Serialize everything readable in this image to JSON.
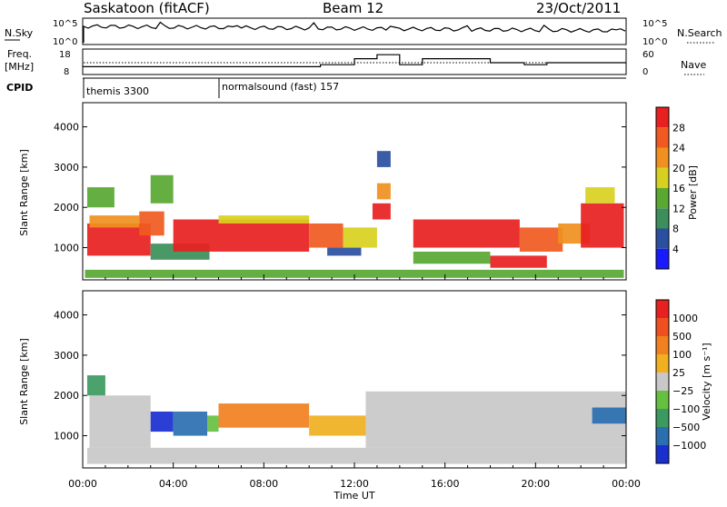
{
  "header": {
    "title": "Saskatoon (fitACF)",
    "beam": "Beam 12",
    "date": "23/Oct/2011"
  },
  "top_panels": {
    "nsky_label": "N.Sky",
    "nsky_ticks": [
      "10^5",
      "10^0"
    ],
    "nsearch_label": "N.Search",
    "nsearch_ticks": [
      "10^5",
      "10^0"
    ],
    "freq_label_line1": "Freq.",
    "freq_label_line2": "[MHz]",
    "freq_ticks": [
      "18",
      "8"
    ],
    "nave_label": "Nave",
    "nave_ticks": [
      "60",
      "0"
    ],
    "cpid_label": "CPID",
    "cpid_segments": [
      {
        "text": "themis 3300",
        "start_hour": 0.0
      },
      {
        "text": "normalsound (fast) 157",
        "start_hour": 6.0
      }
    ]
  },
  "axes": {
    "ylabel": "Slant Range [km]",
    "yticks": [
      "1000",
      "2000",
      "3000",
      "4000"
    ],
    "xticks": [
      "00:00",
      "04:00",
      "08:00",
      "12:00",
      "16:00",
      "20:00",
      "00:00"
    ],
    "xlabel": "Time UT"
  },
  "power_scale": {
    "label": "Power [dB]",
    "ticks": [
      "4",
      "8",
      "12",
      "16",
      "20",
      "24",
      "28"
    ],
    "colors": [
      "#1a1aff",
      "#2a4fa0",
      "#3c8f5a",
      "#58a832",
      "#d8d020",
      "#f09020",
      "#f05a20",
      "#e82020"
    ]
  },
  "velocity_scale": {
    "label": "Velocity [m s⁻¹]",
    "ticks": [
      "1000",
      "500",
      "100",
      "25",
      "−25",
      "−100",
      "−500",
      "−1000"
    ],
    "colors": [
      "#1a2fd0",
      "#2a6fb0",
      "#3c9a60",
      "#66c040",
      "#c8c8c8",
      "#f0b020",
      "#f08020",
      "#f05020",
      "#e82020"
    ]
  },
  "chart_data": {
    "type": "heatmap",
    "x_unit": "hours UT",
    "xlim": [
      0,
      24
    ],
    "ylim": [
      200,
      4600
    ],
    "power": {
      "scale_ticks_dB": [
        4,
        8,
        12,
        16,
        20,
        24,
        28
      ],
      "cells": [
        {
          "t0": 0.2,
          "t1": 3.0,
          "r0": 800,
          "r1": 1600,
          "c": 7
        },
        {
          "t0": 0.3,
          "t1": 2.5,
          "r0": 1500,
          "r1": 1800,
          "c": 5
        },
        {
          "t0": 0.2,
          "t1": 1.4,
          "r0": 2000,
          "r1": 2500,
          "c": 3
        },
        {
          "t0": 2.5,
          "t1": 3.6,
          "r0": 1300,
          "r1": 1900,
          "c": 6
        },
        {
          "t0": 3.0,
          "t1": 5.6,
          "r0": 700,
          "r1": 1100,
          "c": 2
        },
        {
          "t0": 3.0,
          "t1": 4.0,
          "r0": 2100,
          "r1": 2800,
          "c": 3
        },
        {
          "t0": 4.0,
          "t1": 10.0,
          "r0": 900,
          "r1": 1700,
          "c": 7
        },
        {
          "t0": 6.0,
          "t1": 10.0,
          "r0": 1600,
          "r1": 1800,
          "c": 4
        },
        {
          "t0": 10.0,
          "t1": 11.5,
          "r0": 1000,
          "r1": 1600,
          "c": 6
        },
        {
          "t0": 10.8,
          "t1": 12.3,
          "r0": 800,
          "r1": 1000,
          "c": 1
        },
        {
          "t0": 11.5,
          "t1": 13.0,
          "r0": 1000,
          "r1": 1500,
          "c": 4
        },
        {
          "t0": 12.8,
          "t1": 13.6,
          "r0": 1700,
          "r1": 2100,
          "c": 7
        },
        {
          "t0": 13.0,
          "t1": 13.6,
          "r0": 2200,
          "r1": 2600,
          "c": 5
        },
        {
          "t0": 13.0,
          "t1": 13.6,
          "r0": 3000,
          "r1": 3400,
          "c": 1
        },
        {
          "t0": 14.6,
          "t1": 19.3,
          "r0": 1000,
          "r1": 1700,
          "c": 7
        },
        {
          "t0": 14.6,
          "t1": 18.0,
          "r0": 600,
          "r1": 900,
          "c": 3
        },
        {
          "t0": 18.0,
          "t1": 20.5,
          "r0": 500,
          "r1": 800,
          "c": 7
        },
        {
          "t0": 19.3,
          "t1": 21.2,
          "r0": 900,
          "r1": 1500,
          "c": 6
        },
        {
          "t0": 21.0,
          "t1": 22.4,
          "r0": 1100,
          "r1": 1600,
          "c": 5
        },
        {
          "t0": 22.0,
          "t1": 23.9,
          "r0": 1000,
          "r1": 2100,
          "c": 7
        },
        {
          "t0": 22.2,
          "t1": 23.5,
          "r0": 2100,
          "r1": 2500,
          "c": 4
        },
        {
          "t0": 0.1,
          "t1": 23.9,
          "r0": 250,
          "r1": 450,
          "c": 3
        }
      ]
    },
    "velocity": {
      "scale_ticks_ms": [
        1000,
        500,
        100,
        25,
        -25,
        -100,
        -500,
        -1000
      ],
      "cells": [
        {
          "t0": 0.3,
          "t1": 3.0,
          "r0": 700,
          "r1": 2000,
          "c": 4
        },
        {
          "t0": 0.2,
          "t1": 1.0,
          "r0": 2000,
          "r1": 2500,
          "c": 2
        },
        {
          "t0": 3.0,
          "t1": 4.0,
          "r0": 1100,
          "r1": 1600,
          "c": 0
        },
        {
          "t0": 4.0,
          "t1": 5.5,
          "r0": 1000,
          "r1": 1600,
          "c": 1
        },
        {
          "t0": 5.5,
          "t1": 6.0,
          "r0": 1100,
          "r1": 1500,
          "c": 3
        },
        {
          "t0": 6.0,
          "t1": 10.0,
          "r0": 1200,
          "r1": 1800,
          "c": 6
        },
        {
          "t0": 10.0,
          "t1": 12.5,
          "r0": 1000,
          "r1": 1500,
          "c": 5
        },
        {
          "t0": 12.5,
          "t1": 24.0,
          "r0": 700,
          "r1": 2100,
          "c": 4
        },
        {
          "t0": 22.5,
          "t1": 24.0,
          "r0": 1300,
          "r1": 1700,
          "c": 1
        },
        {
          "t0": 0.2,
          "t1": 24.0,
          "r0": 300,
          "r1": 700,
          "c": 4
        }
      ]
    },
    "nsky_mean_log10": 4.8,
    "freq_mhz": [
      {
        "t0": 0.0,
        "t1": 10.5,
        "v": 11
      },
      {
        "t0": 10.5,
        "t1": 12.0,
        "v": 12
      },
      {
        "t0": 12.0,
        "t1": 13.0,
        "v": 15
      },
      {
        "t0": 13.0,
        "t1": 14.0,
        "v": 17
      },
      {
        "t0": 14.0,
        "t1": 15.0,
        "v": 12
      },
      {
        "t0": 15.0,
        "t1": 18.0,
        "v": 15
      },
      {
        "t0": 18.0,
        "t1": 19.5,
        "v": 13
      },
      {
        "t0": 19.5,
        "t1": 20.5,
        "v": 12
      },
      {
        "t0": 20.5,
        "t1": 24.0,
        "v": 13
      }
    ]
  }
}
